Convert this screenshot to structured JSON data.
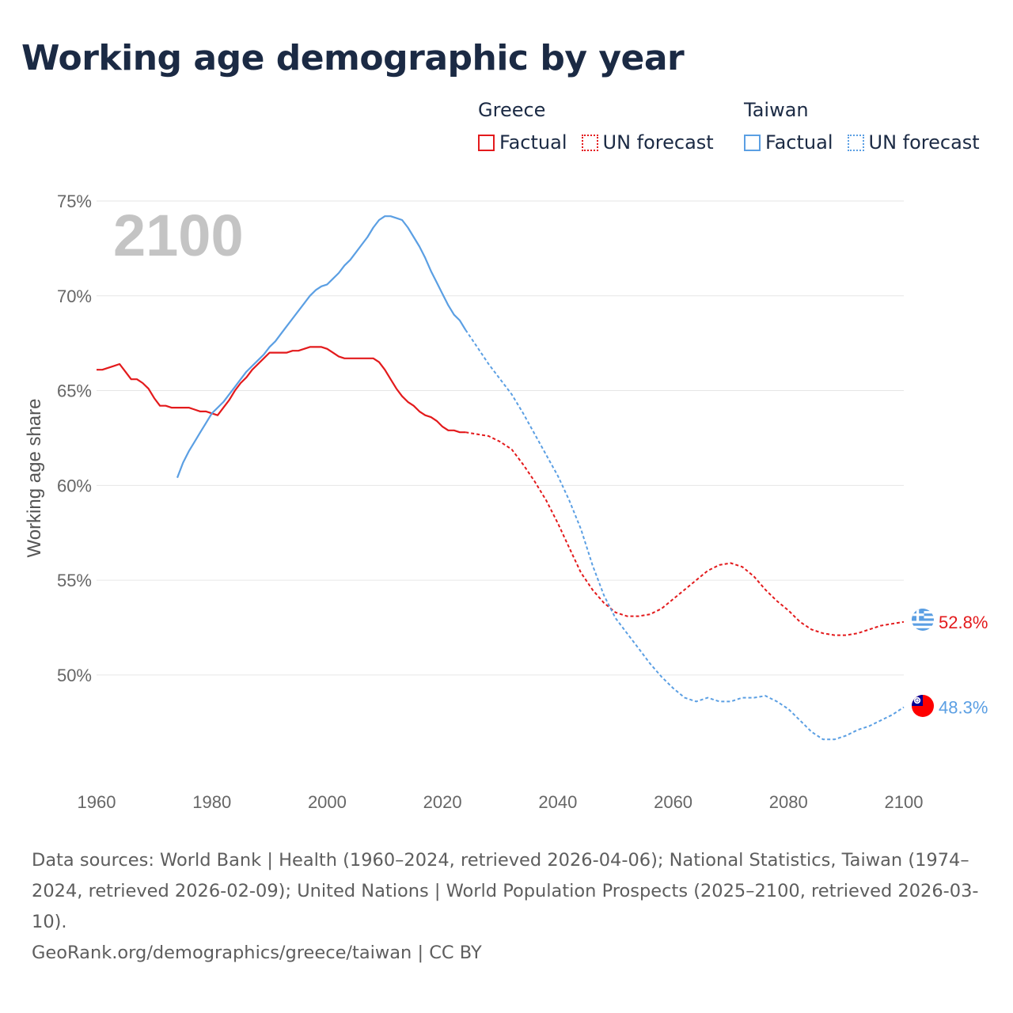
{
  "title": "Working age demographic by year",
  "legend": {
    "groups": [
      {
        "name": "Greece",
        "color": "#e31a1c",
        "items": [
          {
            "label": "Factual",
            "style": "solid"
          },
          {
            "label": "UN forecast",
            "style": "dotted"
          }
        ]
      },
      {
        "name": "Taiwan",
        "color": "#5b9fe3",
        "items": [
          {
            "label": "Factual",
            "style": "solid"
          },
          {
            "label": "UN forecast",
            "style": "dotted"
          }
        ]
      }
    ]
  },
  "year_watermark": "2100",
  "footer": {
    "sources": "Data sources: World Bank | Health (1960–2024, retrieved 2026-04-06); National Statistics, Taiwan (1974–2024, retrieved 2026-02-09); United Nations | World Population Prospects (2025–2100, retrieved 2026-03-10).",
    "credit": "GeoRank.org/demographics/greece/taiwan | CC BY"
  },
  "chart_data": {
    "type": "line",
    "title": "Working age demographic by year",
    "xlabel": "",
    "ylabel": "Working age share",
    "xlim": [
      1960,
      2100
    ],
    "ylim": [
      44.4,
      75
    ],
    "x_ticks": [
      1960,
      1980,
      2000,
      2020,
      2040,
      2060,
      2080,
      2100
    ],
    "x_tick_labels": [
      "1960",
      "1980",
      "2000",
      "2020",
      "2040",
      "2060",
      "2080",
      "2100"
    ],
    "y_ticks": [
      50,
      55,
      60,
      65,
      70,
      75
    ],
    "y_tick_labels": [
      "50%",
      "55%",
      "60%",
      "65%",
      "70%",
      "75%"
    ],
    "grid": "horizontal",
    "series": [
      {
        "name": "Greece",
        "color": "#e31a1c",
        "end_label": "52.8%",
        "factual": [
          [
            1960,
            66.1
          ],
          [
            1961,
            66.1
          ],
          [
            1962,
            66.2
          ],
          [
            1963,
            66.3
          ],
          [
            1964,
            66.4
          ],
          [
            1965,
            66.0
          ],
          [
            1966,
            65.6
          ],
          [
            1967,
            65.6
          ],
          [
            1968,
            65.4
          ],
          [
            1969,
            65.1
          ],
          [
            1970,
            64.6
          ],
          [
            1971,
            64.2
          ],
          [
            1972,
            64.2
          ],
          [
            1973,
            64.1
          ],
          [
            1974,
            64.1
          ],
          [
            1975,
            64.1
          ],
          [
            1976,
            64.1
          ],
          [
            1977,
            64.0
          ],
          [
            1978,
            63.9
          ],
          [
            1979,
            63.9
          ],
          [
            1980,
            63.8
          ],
          [
            1981,
            63.7
          ],
          [
            1982,
            64.1
          ],
          [
            1983,
            64.5
          ],
          [
            1984,
            65.0
          ],
          [
            1985,
            65.4
          ],
          [
            1986,
            65.7
          ],
          [
            1987,
            66.1
          ],
          [
            1988,
            66.4
          ],
          [
            1989,
            66.7
          ],
          [
            1990,
            67.0
          ],
          [
            1991,
            67.0
          ],
          [
            1992,
            67.0
          ],
          [
            1993,
            67.0
          ],
          [
            1994,
            67.1
          ],
          [
            1995,
            67.1
          ],
          [
            1996,
            67.2
          ],
          [
            1997,
            67.3
          ],
          [
            1998,
            67.3
          ],
          [
            1999,
            67.3
          ],
          [
            2000,
            67.2
          ],
          [
            2001,
            67.0
          ],
          [
            2002,
            66.8
          ],
          [
            2003,
            66.7
          ],
          [
            2004,
            66.7
          ],
          [
            2005,
            66.7
          ],
          [
            2006,
            66.7
          ],
          [
            2007,
            66.7
          ],
          [
            2008,
            66.7
          ],
          [
            2009,
            66.5
          ],
          [
            2010,
            66.1
          ],
          [
            2011,
            65.6
          ],
          [
            2012,
            65.1
          ],
          [
            2013,
            64.7
          ],
          [
            2014,
            64.4
          ],
          [
            2015,
            64.2
          ],
          [
            2016,
            63.9
          ],
          [
            2017,
            63.7
          ],
          [
            2018,
            63.6
          ],
          [
            2019,
            63.4
          ],
          [
            2020,
            63.1
          ],
          [
            2021,
            62.9
          ],
          [
            2022,
            62.9
          ],
          [
            2023,
            62.8
          ],
          [
            2024,
            62.8
          ]
        ],
        "forecast": [
          [
            2024,
            62.8
          ],
          [
            2026,
            62.7
          ],
          [
            2028,
            62.6
          ],
          [
            2030,
            62.3
          ],
          [
            2032,
            61.9
          ],
          [
            2034,
            61.1
          ],
          [
            2036,
            60.2
          ],
          [
            2038,
            59.2
          ],
          [
            2040,
            58.0
          ],
          [
            2042,
            56.7
          ],
          [
            2044,
            55.4
          ],
          [
            2046,
            54.5
          ],
          [
            2048,
            53.8
          ],
          [
            2050,
            53.3
          ],
          [
            2052,
            53.1
          ],
          [
            2054,
            53.1
          ],
          [
            2056,
            53.2
          ],
          [
            2058,
            53.5
          ],
          [
            2060,
            54.0
          ],
          [
            2062,
            54.5
          ],
          [
            2064,
            55.0
          ],
          [
            2066,
            55.5
          ],
          [
            2068,
            55.8
          ],
          [
            2070,
            55.9
          ],
          [
            2072,
            55.7
          ],
          [
            2074,
            55.2
          ],
          [
            2076,
            54.5
          ],
          [
            2078,
            53.9
          ],
          [
            2080,
            53.4
          ],
          [
            2082,
            52.8
          ],
          [
            2084,
            52.4
          ],
          [
            2086,
            52.2
          ],
          [
            2088,
            52.1
          ],
          [
            2090,
            52.1
          ],
          [
            2092,
            52.2
          ],
          [
            2094,
            52.4
          ],
          [
            2096,
            52.6
          ],
          [
            2098,
            52.7
          ],
          [
            2100,
            52.8
          ]
        ]
      },
      {
        "name": "Taiwan",
        "color": "#5b9fe3",
        "end_label": "48.3%",
        "factual": [
          [
            1974,
            60.4
          ],
          [
            1975,
            61.2
          ],
          [
            1976,
            61.8
          ],
          [
            1977,
            62.3
          ],
          [
            1978,
            62.8
          ],
          [
            1979,
            63.3
          ],
          [
            1980,
            63.8
          ],
          [
            1981,
            64.1
          ],
          [
            1982,
            64.4
          ],
          [
            1983,
            64.8
          ],
          [
            1984,
            65.2
          ],
          [
            1985,
            65.6
          ],
          [
            1986,
            66.0
          ],
          [
            1987,
            66.3
          ],
          [
            1988,
            66.6
          ],
          [
            1989,
            66.9
          ],
          [
            1990,
            67.3
          ],
          [
            1991,
            67.6
          ],
          [
            1992,
            68.0
          ],
          [
            1993,
            68.4
          ],
          [
            1994,
            68.8
          ],
          [
            1995,
            69.2
          ],
          [
            1996,
            69.6
          ],
          [
            1997,
            70.0
          ],
          [
            1998,
            70.3
          ],
          [
            1999,
            70.5
          ],
          [
            2000,
            70.6
          ],
          [
            2001,
            70.9
          ],
          [
            2002,
            71.2
          ],
          [
            2003,
            71.6
          ],
          [
            2004,
            71.9
          ],
          [
            2005,
            72.3
          ],
          [
            2006,
            72.7
          ],
          [
            2007,
            73.1
          ],
          [
            2008,
            73.6
          ],
          [
            2009,
            74.0
          ],
          [
            2010,
            74.2
          ],
          [
            2011,
            74.2
          ],
          [
            2012,
            74.1
          ],
          [
            2013,
            74.0
          ],
          [
            2014,
            73.6
          ],
          [
            2015,
            73.1
          ],
          [
            2016,
            72.6
          ],
          [
            2017,
            72.0
          ],
          [
            2018,
            71.3
          ],
          [
            2019,
            70.7
          ],
          [
            2020,
            70.1
          ],
          [
            2021,
            69.5
          ],
          [
            2022,
            69.0
          ],
          [
            2023,
            68.7
          ],
          [
            2024,
            68.2
          ]
        ],
        "forecast": [
          [
            2024,
            68.2
          ],
          [
            2026,
            67.3
          ],
          [
            2028,
            66.4
          ],
          [
            2030,
            65.6
          ],
          [
            2032,
            64.8
          ],
          [
            2034,
            63.8
          ],
          [
            2036,
            62.7
          ],
          [
            2038,
            61.6
          ],
          [
            2040,
            60.5
          ],
          [
            2042,
            59.2
          ],
          [
            2044,
            57.7
          ],
          [
            2046,
            55.8
          ],
          [
            2048,
            54.2
          ],
          [
            2050,
            53.0
          ],
          [
            2052,
            52.2
          ],
          [
            2054,
            51.4
          ],
          [
            2056,
            50.6
          ],
          [
            2058,
            49.9
          ],
          [
            2060,
            49.3
          ],
          [
            2062,
            48.8
          ],
          [
            2064,
            48.6
          ],
          [
            2066,
            48.8
          ],
          [
            2068,
            48.6
          ],
          [
            2070,
            48.6
          ],
          [
            2072,
            48.8
          ],
          [
            2074,
            48.8
          ],
          [
            2076,
            48.9
          ],
          [
            2078,
            48.6
          ],
          [
            2080,
            48.2
          ],
          [
            2082,
            47.6
          ],
          [
            2084,
            47.0
          ],
          [
            2086,
            46.6
          ],
          [
            2088,
            46.6
          ],
          [
            2090,
            46.8
          ],
          [
            2092,
            47.1
          ],
          [
            2094,
            47.3
          ],
          [
            2096,
            47.6
          ],
          [
            2098,
            47.9
          ],
          [
            2100,
            48.3
          ]
        ]
      }
    ]
  }
}
